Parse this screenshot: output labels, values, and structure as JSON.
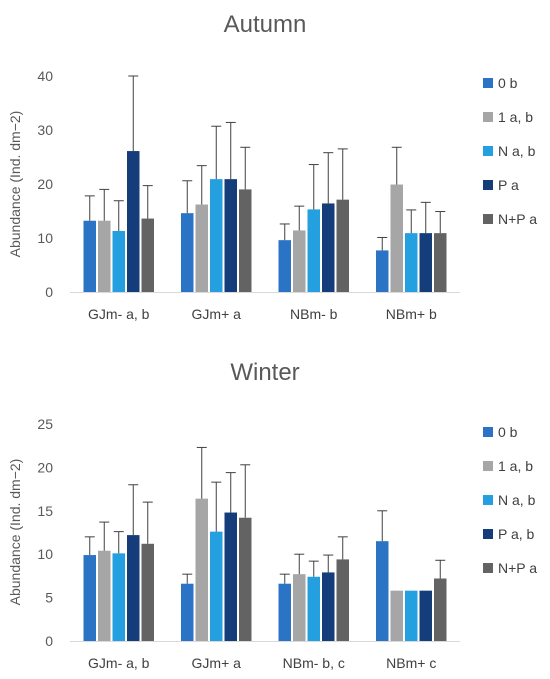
{
  "chart_data": [
    {
      "type": "bar",
      "title": "Autumn",
      "ylabel": "Abundance (Ind. dm−2)",
      "ylim": [
        0,
        40
      ],
      "yticks": [
        "0",
        "10",
        "20",
        "30",
        "40"
      ],
      "categories": [
        "GJm- a, b",
        "GJm+ a",
        "NBm- b",
        "NBm+ b"
      ],
      "legend_position": "right",
      "grid": false,
      "series": [
        {
          "name": "0 b",
          "color": "#2b73c4",
          "values": [
            13.2,
            14.6,
            9.6,
            7.7
          ],
          "errors": [
            4.6,
            6.0,
            3.0,
            2.4
          ]
        },
        {
          "name": "1 a, b",
          "color": "#a6a6a6",
          "values": [
            13.2,
            16.2,
            11.4,
            19.9
          ],
          "errors": [
            5.8,
            7.2,
            4.5,
            6.9
          ]
        },
        {
          "name": "N a, b",
          "color": "#24a0e0",
          "values": [
            11.3,
            20.9,
            15.3,
            10.9
          ],
          "errors": [
            5.6,
            9.8,
            8.3,
            4.3
          ]
        },
        {
          "name": "P a",
          "color": "#143d7a",
          "values": [
            26.1,
            20.9,
            16.4,
            10.9
          ],
          "errors": [
            13.9,
            10.5,
            9.4,
            5.7
          ]
        },
        {
          "name": "N+P a",
          "color": "#636363",
          "values": [
            13.6,
            19.0,
            17.1,
            10.9
          ],
          "errors": [
            6.1,
            7.8,
            9.4,
            4.0
          ]
        }
      ]
    },
    {
      "type": "bar",
      "title": "Winter",
      "ylabel": "Abundance (Ind. dm−2)",
      "ylim": [
        0,
        25
      ],
      "yticks": [
        "0",
        "5",
        "10",
        "15",
        "20",
        "25"
      ],
      "categories": [
        "GJm- a, b",
        "GJm+ a",
        "NBm- b, c",
        "NBm+ c"
      ],
      "legend_position": "right",
      "grid": false,
      "series": [
        {
          "name": "0 b",
          "color": "#2b73c4",
          "values": [
            9.9,
            6.6,
            6.6,
            11.5
          ],
          "errors": [
            2.1,
            1.1,
            1.1,
            3.5
          ]
        },
        {
          "name": "1 a, b",
          "color": "#a6a6a6",
          "values": [
            10.4,
            16.4,
            7.7,
            5.8
          ],
          "errors": [
            3.3,
            5.9,
            2.3,
            0.0
          ]
        },
        {
          "name": "N a, b",
          "color": "#24a0e0",
          "values": [
            10.1,
            12.6,
            7.4,
            5.8
          ],
          "errors": [
            2.5,
            5.7,
            1.8,
            0.0
          ]
        },
        {
          "name": "P a, b",
          "color": "#143d7a",
          "values": [
            12.2,
            14.8,
            7.9,
            5.8
          ],
          "errors": [
            5.8,
            4.6,
            2.0,
            0.0
          ]
        },
        {
          "name": "N+P a",
          "color": "#636363",
          "values": [
            11.2,
            14.2,
            9.4,
            7.2
          ],
          "errors": [
            4.8,
            6.1,
            2.6,
            2.1
          ]
        }
      ]
    }
  ]
}
